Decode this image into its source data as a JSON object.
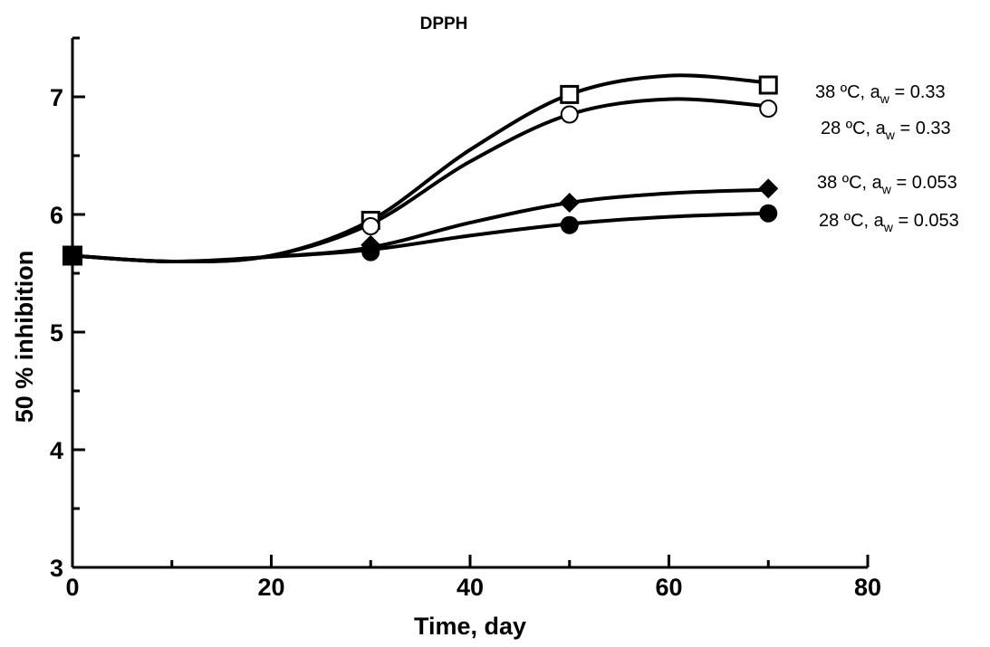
{
  "chart_data": {
    "type": "scatter",
    "title": "DPPH",
    "xlabel": "Time, day",
    "ylabel": "50 % inhibition",
    "xlim": [
      0,
      80
    ],
    "ylim": [
      3,
      7.5
    ],
    "x_ticks": [
      "0",
      "20",
      "40",
      "60",
      "80"
    ],
    "y_ticks": [
      "3",
      "4",
      "5",
      "6",
      "7"
    ],
    "grid": false,
    "legend_placement": "right",
    "series": [
      {
        "name": "38 ºC, aw = 0.33",
        "legend": {
          "pre": "38 ºC, a",
          "sub": "w",
          "post": " = 0.33"
        },
        "marker": "square-open",
        "x": [
          0,
          30,
          50,
          70
        ],
        "y": [
          5.65,
          5.95,
          7.02,
          7.1
        ],
        "fit": [
          [
            0,
            5.65
          ],
          [
            10,
            5.6
          ],
          [
            20,
            5.65
          ],
          [
            30,
            5.95
          ],
          [
            40,
            6.55
          ],
          [
            50,
            7.02
          ],
          [
            60,
            7.18
          ],
          [
            70,
            7.12
          ]
        ]
      },
      {
        "name": "28 ºC, aw = 0.33",
        "legend": {
          "pre": "28 ºC, a",
          "sub": "w",
          "post": " = 0.33"
        },
        "marker": "circle-open",
        "x": [
          0,
          30,
          50,
          70
        ],
        "y": [
          5.65,
          5.9,
          6.85,
          6.9
        ],
        "fit": [
          [
            0,
            5.65
          ],
          [
            10,
            5.6
          ],
          [
            20,
            5.65
          ],
          [
            30,
            5.92
          ],
          [
            40,
            6.45
          ],
          [
            50,
            6.85
          ],
          [
            60,
            6.98
          ],
          [
            70,
            6.92
          ]
        ]
      },
      {
        "name": "38 ºC, aw = 0.053",
        "legend": {
          "pre": "38 ºC, a",
          "sub": "w",
          "post": " = 0.053"
        },
        "marker": "diamond-filled",
        "x": [
          0,
          30,
          50,
          70
        ],
        "y": [
          5.65,
          5.74,
          6.1,
          6.22
        ],
        "fit": [
          [
            0,
            5.65
          ],
          [
            10,
            5.6
          ],
          [
            20,
            5.64
          ],
          [
            30,
            5.72
          ],
          [
            40,
            5.93
          ],
          [
            50,
            6.1
          ],
          [
            60,
            6.18
          ],
          [
            70,
            6.21
          ]
        ]
      },
      {
        "name": "28 ºC, aw = 0.053",
        "legend": {
          "pre": "28 ºC, a",
          "sub": "w",
          "post": " = 0.053"
        },
        "marker": "circle-filled",
        "x": [
          0,
          30,
          50,
          70
        ],
        "y": [
          5.65,
          5.68,
          5.91,
          6.01
        ],
        "fit": [
          [
            0,
            5.65
          ],
          [
            10,
            5.6
          ],
          [
            20,
            5.64
          ],
          [
            30,
            5.7
          ],
          [
            40,
            5.82
          ],
          [
            50,
            5.92
          ],
          [
            60,
            5.98
          ],
          [
            70,
            6.01
          ]
        ]
      }
    ]
  }
}
